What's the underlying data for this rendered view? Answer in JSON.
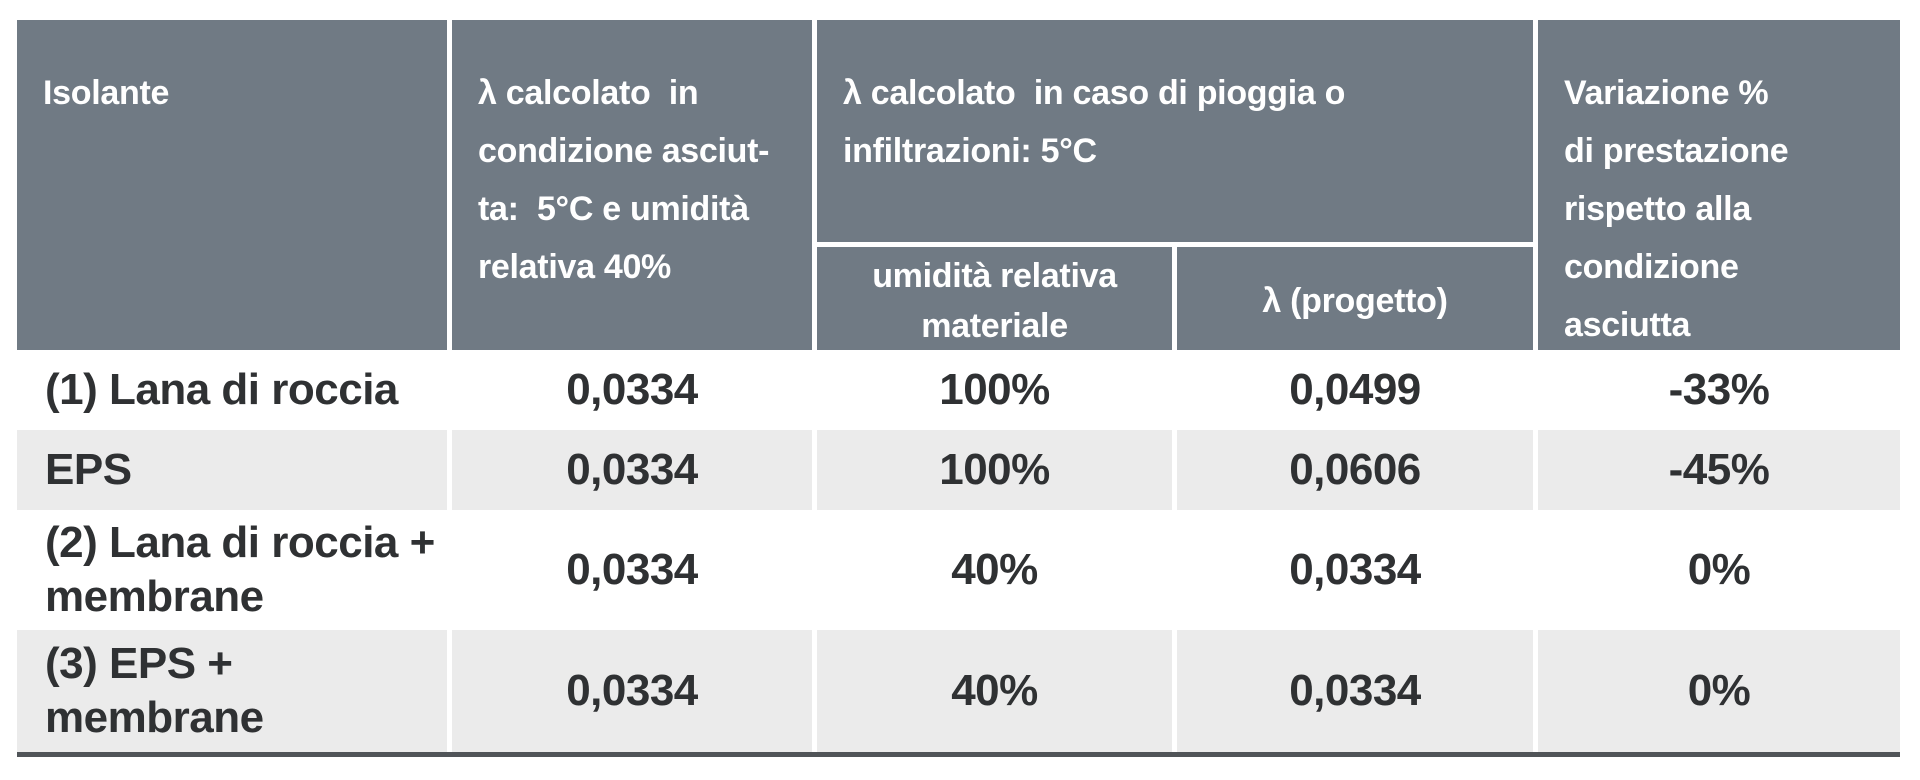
{
  "table": {
    "header": {
      "isolante": "Isolante",
      "lambda_dry": "λ calcolato  in\ncondizione asciut-\nta:  5°C e umidità\nrelativa 40%",
      "lambda_wet_group": "λ calcolato  in caso di pioggia o\ninfiltrazioni: 5°C",
      "sub_humidity": "umidità relativa\nmateriale",
      "sub_lambda_design": "λ (progetto)",
      "variation": "Variazione %\ndi prestazione\nrispetto alla\ncondizione\nasciutta"
    },
    "rows": [
      {
        "cells": [
          "(1) Lana di roccia",
          "0,0334",
          "100%",
          "0,0499",
          "-33%"
        ]
      },
      {
        "cells": [
          "EPS",
          "0,0334",
          "100%",
          "0,0606",
          "-45%"
        ]
      },
      {
        "cells": [
          "(2) Lana di roccia +\nmembrane",
          "0,0334",
          "40%",
          "0,0334",
          "0%"
        ]
      },
      {
        "cells": [
          "(3) EPS + membrane",
          "0,0334",
          "40%",
          "0,0334",
          "0%"
        ]
      }
    ]
  },
  "colors": {
    "header_bg": "#707a84",
    "header_text": "#ffffff",
    "zebra_row_bg": "#ebebeb",
    "data_text": "#2f3133",
    "bottom_rule": "#505458",
    "page_bg": "#ffffff"
  }
}
